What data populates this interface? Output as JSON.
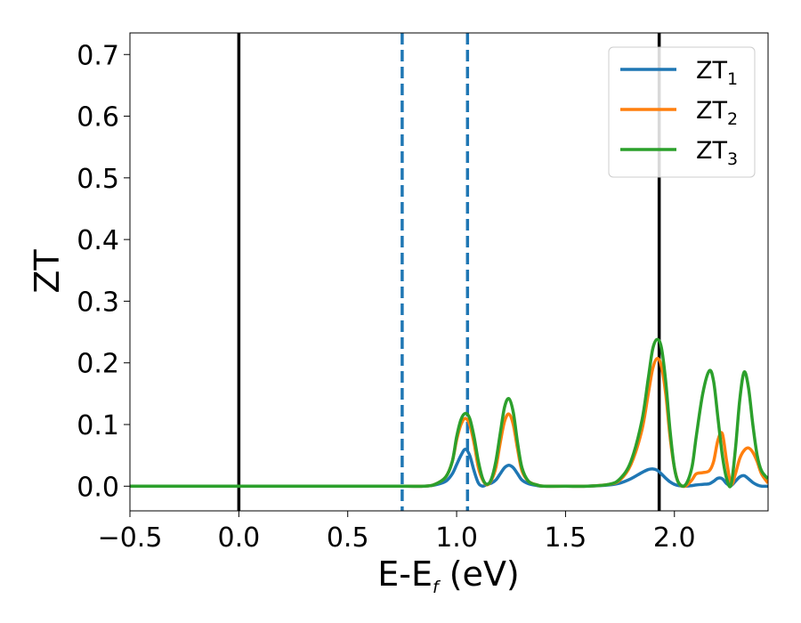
{
  "chart_data": {
    "type": "line",
    "xlabel": "E-E",
    "xlabel_sub": "f",
    "xlabel_unit": " (eV)",
    "ylabel": "ZT",
    "xlim": [
      -0.5,
      2.43
    ],
    "ylim": [
      -0.04,
      0.735
    ],
    "xticks": [
      -0.5,
      0.0,
      0.5,
      1.0,
      1.5,
      2.0
    ],
    "xtick_labels": [
      "−0.5",
      "0.0",
      "0.5",
      "1.0",
      "1.5",
      "2.0"
    ],
    "yticks": [
      0.0,
      0.1,
      0.2,
      0.3,
      0.4,
      0.5,
      0.6,
      0.7
    ],
    "ytick_labels": [
      "0.0",
      "0.1",
      "0.2",
      "0.3",
      "0.4",
      "0.5",
      "0.6",
      "0.7"
    ],
    "grid": false,
    "legend_position": "top-right",
    "vlines": [
      {
        "x": 0.0,
        "style": "solid",
        "color": "#000000"
      },
      {
        "x": 1.93,
        "style": "solid",
        "color": "#000000"
      },
      {
        "x": 0.75,
        "style": "dashed",
        "color": "#1f77b4"
      },
      {
        "x": 1.05,
        "style": "dashed",
        "color": "#1f77b4"
      }
    ],
    "series": [
      {
        "name": "ZT",
        "subscript": "1",
        "color": "#1f77b4",
        "x": [
          -0.5,
          0.0,
          0.5,
          0.75,
          0.85,
          0.9,
          0.95,
          0.98,
          1.0,
          1.02,
          1.04,
          1.06,
          1.08,
          1.1,
          1.12,
          1.14,
          1.16,
          1.18,
          1.2,
          1.22,
          1.24,
          1.26,
          1.28,
          1.3,
          1.33,
          1.37,
          1.4,
          1.5,
          1.6,
          1.7,
          1.75,
          1.8,
          1.85,
          1.88,
          1.9,
          1.92,
          1.94,
          1.96,
          1.98,
          2.0,
          2.02,
          2.05,
          2.08,
          2.1,
          2.13,
          2.16,
          2.18,
          2.2,
          2.22,
          2.24,
          2.26,
          2.28,
          2.3,
          2.32,
          2.34,
          2.36,
          2.38,
          2.4,
          2.43
        ],
        "y": [
          0.0,
          0.0,
          0.0,
          0.0,
          0.0,
          0.002,
          0.008,
          0.02,
          0.035,
          0.05,
          0.06,
          0.05,
          0.025,
          0.005,
          0.0,
          0.003,
          0.005,
          0.01,
          0.02,
          0.03,
          0.034,
          0.03,
          0.02,
          0.01,
          0.004,
          0.001,
          0.0,
          0.0,
          0.0,
          0.002,
          0.005,
          0.012,
          0.022,
          0.027,
          0.028,
          0.026,
          0.02,
          0.013,
          0.007,
          0.003,
          0.001,
          0.0,
          0.001,
          0.002,
          0.003,
          0.004,
          0.008,
          0.013,
          0.012,
          0.004,
          0.001,
          0.008,
          0.015,
          0.017,
          0.012,
          0.006,
          0.002,
          0.0,
          0.0
        ]
      },
      {
        "name": "ZT",
        "subscript": "2",
        "color": "#ff7f0e",
        "x": [
          -0.5,
          0.0,
          0.5,
          0.75,
          0.85,
          0.9,
          0.95,
          0.98,
          1.0,
          1.02,
          1.04,
          1.06,
          1.08,
          1.1,
          1.12,
          1.14,
          1.16,
          1.18,
          1.2,
          1.22,
          1.24,
          1.26,
          1.28,
          1.3,
          1.33,
          1.37,
          1.4,
          1.5,
          1.6,
          1.7,
          1.75,
          1.8,
          1.85,
          1.88,
          1.9,
          1.92,
          1.94,
          1.96,
          1.98,
          2.0,
          2.02,
          2.05,
          2.08,
          2.1,
          2.13,
          2.16,
          2.18,
          2.2,
          2.22,
          2.24,
          2.26,
          2.28,
          2.3,
          2.32,
          2.34,
          2.36,
          2.38,
          2.4,
          2.43
        ],
        "y": [
          0.0,
          0.0,
          0.0,
          0.0,
          0.0,
          0.003,
          0.015,
          0.04,
          0.075,
          0.1,
          0.11,
          0.1,
          0.07,
          0.03,
          0.01,
          0.002,
          0.01,
          0.03,
          0.07,
          0.105,
          0.117,
          0.1,
          0.06,
          0.025,
          0.008,
          0.002,
          0.0,
          0.0,
          0.0,
          0.003,
          0.01,
          0.035,
          0.09,
          0.15,
          0.19,
          0.207,
          0.195,
          0.15,
          0.08,
          0.03,
          0.005,
          0.0,
          0.01,
          0.02,
          0.022,
          0.025,
          0.04,
          0.075,
          0.085,
          0.04,
          0.003,
          0.02,
          0.045,
          0.058,
          0.062,
          0.055,
          0.04,
          0.02,
          0.005
        ]
      },
      {
        "name": "ZT",
        "subscript": "3",
        "color": "#2ca02c",
        "x": [
          -0.5,
          0.0,
          0.5,
          0.75,
          0.85,
          0.9,
          0.95,
          0.98,
          1.0,
          1.02,
          1.04,
          1.06,
          1.08,
          1.1,
          1.12,
          1.14,
          1.16,
          1.18,
          1.2,
          1.22,
          1.24,
          1.26,
          1.28,
          1.3,
          1.33,
          1.37,
          1.4,
          1.5,
          1.6,
          1.7,
          1.75,
          1.8,
          1.85,
          1.88,
          1.9,
          1.92,
          1.94,
          1.96,
          1.98,
          2.0,
          2.02,
          2.05,
          2.08,
          2.1,
          2.13,
          2.16,
          2.18,
          2.2,
          2.22,
          2.24,
          2.26,
          2.28,
          2.3,
          2.32,
          2.34,
          2.36,
          2.38,
          2.4,
          2.43
        ],
        "y": [
          0.0,
          0.0,
          0.0,
          0.0,
          0.0,
          0.003,
          0.015,
          0.04,
          0.08,
          0.108,
          0.118,
          0.11,
          0.08,
          0.04,
          0.012,
          0.003,
          0.012,
          0.04,
          0.085,
          0.128,
          0.142,
          0.12,
          0.07,
          0.03,
          0.008,
          0.002,
          0.0,
          0.0,
          0.0,
          0.003,
          0.012,
          0.04,
          0.105,
          0.175,
          0.222,
          0.238,
          0.225,
          0.17,
          0.09,
          0.03,
          0.005,
          0.002,
          0.03,
          0.08,
          0.15,
          0.187,
          0.17,
          0.11,
          0.05,
          0.012,
          0.002,
          0.06,
          0.14,
          0.185,
          0.16,
          0.1,
          0.05,
          0.025,
          0.012
        ]
      }
    ]
  }
}
